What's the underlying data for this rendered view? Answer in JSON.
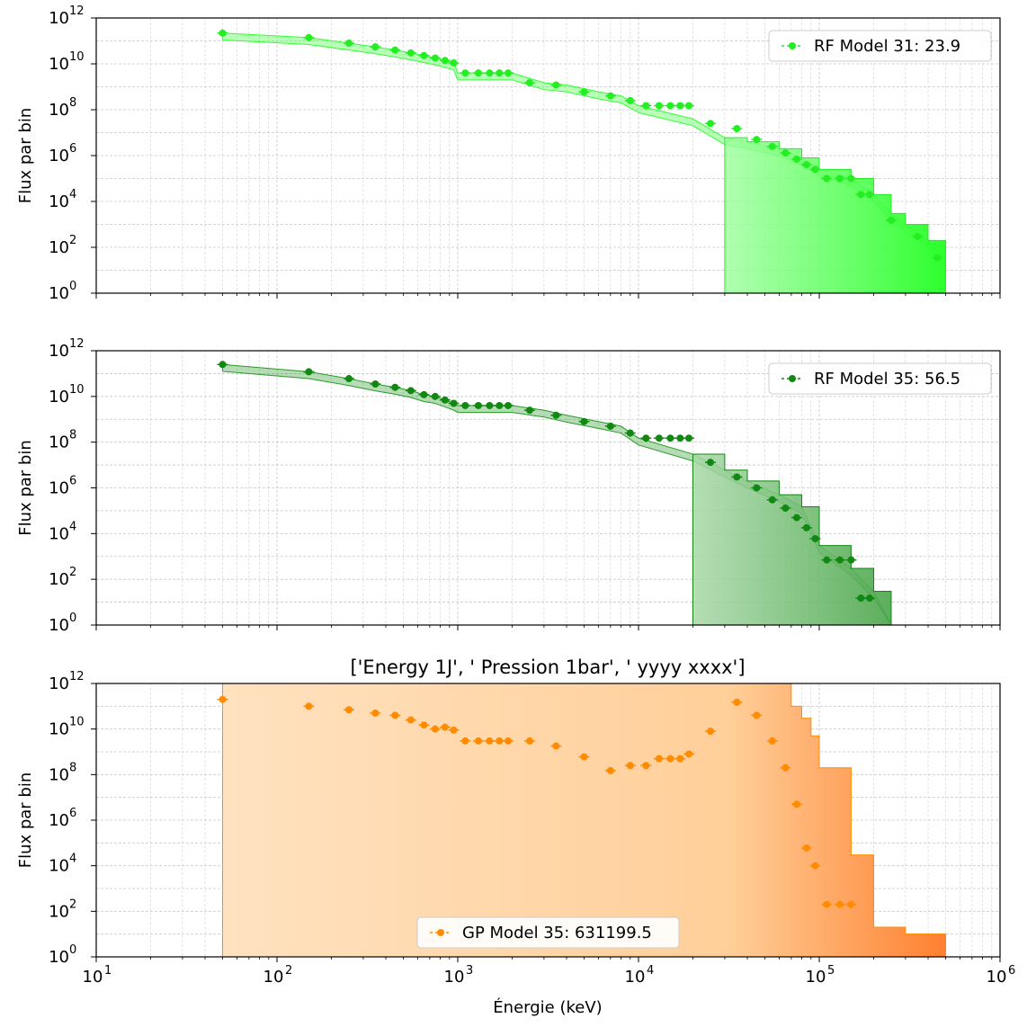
{
  "figure": {
    "xlabel": "Énergie (keV)",
    "xticks": [
      "10",
      "10",
      "10",
      "10",
      "10",
      "10"
    ],
    "xtick_exponents": [
      "1",
      "2",
      "3",
      "4",
      "5",
      "6"
    ],
    "yticks": [
      "10",
      "10",
      "10",
      "10",
      "10",
      "10",
      "10"
    ],
    "ytick_exponents": [
      "0",
      "2",
      "4",
      "6",
      "8",
      "10",
      "12"
    ]
  },
  "chart_data": [
    {
      "type": "scatter",
      "title": "",
      "xlabel": "",
      "ylabel": "Flux par bin",
      "xscale": "log",
      "yscale": "log",
      "xlim": [
        10,
        1000000
      ],
      "ylim": [
        1,
        1000000000000.0
      ],
      "grid": true,
      "legend": {
        "label": "RF Model 31: 23.9",
        "placement": "top-right"
      },
      "color": "#22ee22",
      "fill_color": "#33ff33",
      "x": [
        50,
        150,
        250,
        350,
        450,
        550,
        650,
        750,
        850,
        950,
        1100,
        1300,
        1500,
        1700,
        1900,
        2500,
        3500,
        5000,
        7000,
        9000,
        11000,
        13000,
        15000,
        17000,
        19000,
        25000,
        35000,
        45000,
        55000,
        65000,
        75000,
        85000,
        95000,
        110000,
        130000,
        150000,
        170000,
        190000,
        250000,
        350000,
        450000
      ],
      "y": [
        220000000000.0,
        140000000000.0,
        80000000000.0,
        55000000000.0,
        40000000000.0,
        30000000000.0,
        23000000000.0,
        18000000000.0,
        14000000000.0,
        11000000000.0,
        4000000000.0,
        4000000000.0,
        4000000000.0,
        4000000000.0,
        4000000000.0,
        1500000000.0,
        1200000000.0,
        600000000.0,
        400000000.0,
        250000000.0,
        150000000.0,
        150000000.0,
        150000000.0,
        150000000.0,
        150000000.0,
        25000000.0,
        15000000.0,
        5000000.0,
        2500000.0,
        1300000.0,
        700000.0,
        400000.0,
        250000.0,
        100000.0,
        100000.0,
        100000.0,
        20000.0,
        20000.0,
        1500.0,
        300.0,
        35.0
      ],
      "shade_band": [
        [
          50,
          220000000000.0
        ],
        [
          150,
          140000000000.0
        ],
        [
          250,
          80000000000.0
        ],
        [
          350,
          55000000000.0
        ],
        [
          450,
          40000000000.0
        ],
        [
          550,
          30000000000.0
        ],
        [
          650,
          23000000000.0
        ],
        [
          750,
          18000000000.0
        ],
        [
          850,
          14000000000.0
        ],
        [
          950,
          11000000000.0
        ],
        [
          1000,
          4000000000.0
        ],
        [
          2000,
          4000000000.0
        ],
        [
          3000,
          1500000000.0
        ],
        [
          4000,
          1200000000.0
        ],
        [
          6000,
          600000000.0
        ],
        [
          8000,
          400000000.0
        ],
        [
          10000,
          150000000.0
        ],
        [
          20000,
          40000000.0
        ],
        [
          30000,
          6000000.0
        ],
        [
          40000,
          4000000.0
        ],
        [
          60000,
          2000000.0
        ],
        [
          80000,
          800000.0
        ],
        [
          100000,
          250000.0
        ],
        [
          150000,
          100000.0
        ],
        [
          200000,
          20000.0
        ],
        [
          250000,
          3000.0
        ],
        [
          300000,
          1000.0
        ],
        [
          400000,
          200.0
        ],
        [
          500000,
          35.0
        ]
      ],
      "fill_region": [
        [
          30000,
          6000000.0
        ],
        [
          40000,
          4000000.0
        ],
        [
          60000,
          2000000.0
        ],
        [
          80000,
          800000.0
        ],
        [
          100000,
          250000.0
        ],
        [
          150000,
          100000.0
        ],
        [
          200000,
          20000.0
        ],
        [
          250000,
          3000.0
        ],
        [
          300000,
          1000.0
        ],
        [
          400000,
          200.0
        ],
        [
          500000,
          35.0
        ]
      ]
    },
    {
      "type": "scatter",
      "title": "",
      "xlabel": "",
      "ylabel": "Flux par bin",
      "xscale": "log",
      "yscale": "log",
      "xlim": [
        10,
        1000000
      ],
      "ylim": [
        1,
        1000000000000.0
      ],
      "grid": true,
      "legend": {
        "label": "RF Model 35: 56.5",
        "placement": "top-right"
      },
      "color": "#118811",
      "fill_color": "#2a9a2a",
      "x": [
        50,
        150,
        250,
        350,
        450,
        550,
        650,
        750,
        850,
        950,
        1100,
        1300,
        1500,
        1700,
        1900,
        2500,
        3500,
        5000,
        7000,
        9000,
        11000,
        13000,
        15000,
        17000,
        19000,
        25000,
        35000,
        45000,
        55000,
        65000,
        75000,
        85000,
        95000,
        110000,
        130000,
        150000,
        170000,
        190000
      ],
      "y": [
        250000000000.0,
        120000000000.0,
        60000000000.0,
        35000000000.0,
        25000000000.0,
        18000000000.0,
        12000000000.0,
        10000000000.0,
        7000000000.0,
        5000000000.0,
        4000000000.0,
        4000000000.0,
        4000000000.0,
        4000000000.0,
        4000000000.0,
        2500000000.0,
        1500000000.0,
        800000000.0,
        500000000.0,
        250000000.0,
        150000000.0,
        150000000.0,
        150000000.0,
        150000000.0,
        150000000.0,
        13000000.0,
        3000000.0,
        1000000.0,
        300000.0,
        130000.0,
        50000.0,
        18000.0,
        6000.0,
        700.0,
        700.0,
        700.0,
        15.0,
        15.0
      ],
      "shade_band": [
        [
          50,
          250000000000.0
        ],
        [
          150,
          120000000000.0
        ],
        [
          250,
          60000000000.0
        ],
        [
          350,
          35000000000.0
        ],
        [
          450,
          25000000000.0
        ],
        [
          550,
          18000000000.0
        ],
        [
          650,
          12000000000.0
        ],
        [
          750,
          10000000000.0
        ],
        [
          850,
          7000000000.0
        ],
        [
          950,
          5000000000.0
        ],
        [
          1000,
          4000000000.0
        ],
        [
          2000,
          4000000000.0
        ],
        [
          3000,
          2500000000.0
        ],
        [
          4000,
          1500000000.0
        ],
        [
          6000,
          800000000.0
        ],
        [
          8000,
          500000000.0
        ],
        [
          10000,
          150000000.0
        ],
        [
          20000,
          30000000.0
        ],
        [
          30000,
          6000000.0
        ],
        [
          40000,
          2000000.0
        ],
        [
          60000,
          500000.0
        ],
        [
          80000,
          150000.0
        ],
        [
          100000,
          3000.0
        ],
        [
          150000,
          300.0
        ],
        [
          200000,
          30.0
        ],
        [
          250000,
          1
        ]
      ],
      "fill_region": [
        [
          20000,
          30000000.0
        ],
        [
          30000,
          6000000.0
        ],
        [
          40000,
          2000000.0
        ],
        [
          60000,
          500000.0
        ],
        [
          80000,
          150000.0
        ],
        [
          100000,
          3000.0
        ],
        [
          150000,
          300.0
        ],
        [
          200000,
          30.0
        ],
        [
          250000,
          1
        ]
      ]
    },
    {
      "type": "scatter",
      "title": "['Energy 1J', ' Pression 1bar', ' yyyy xxxx']",
      "xlabel": "Énergie (keV)",
      "ylabel": "Flux par bin",
      "xscale": "log",
      "yscale": "log",
      "xlim": [
        10,
        1000000
      ],
      "ylim": [
        1,
        1000000000000.0
      ],
      "grid": true,
      "legend": {
        "label": "GP Model 35: 631199.5",
        "placement": "bottom-center"
      },
      "color": "#ff8c00",
      "fill_color": "#ffb066",
      "x": [
        50,
        150,
        250,
        350,
        450,
        550,
        650,
        750,
        850,
        950,
        1100,
        1300,
        1500,
        1700,
        1900,
        2500,
        3500,
        5000,
        7000,
        9000,
        11000,
        13000,
        15000,
        17000,
        19000,
        25000,
        35000,
        45000,
        55000,
        65000,
        75000,
        85000,
        95000,
        110000,
        130000,
        150000
      ],
      "y": [
        200000000000.0,
        100000000000.0,
        70000000000.0,
        50000000000.0,
        40000000000.0,
        25000000000.0,
        15000000000.0,
        10000000000.0,
        12000000000.0,
        9000000000.0,
        3000000000.0,
        3000000000.0,
        3000000000.0,
        3000000000.0,
        3000000000.0,
        3000000000.0,
        1800000000.0,
        600000000.0,
        150000000.0,
        250000000.0,
        250000000.0,
        500000000.0,
        500000000.0,
        500000000.0,
        800000000.0,
        8000000000.0,
        150000000000.0,
        40000000000.0,
        3000000000.0,
        200000000.0,
        5000000.0,
        60000.0,
        10000.0,
        200.0,
        200.0,
        200.0
      ],
      "shade_band": [
        [
          50,
          1000000000000.0
        ],
        [
          60000,
          1000000000000.0
        ],
        [
          65000,
          1000000000000.0
        ],
        [
          70000,
          100000000000.0
        ],
        [
          80000,
          30000000000.0
        ],
        [
          90000,
          5000000000.0
        ],
        [
          100000,
          200000000.0
        ],
        [
          150000,
          30000.0
        ],
        [
          200000,
          20.0
        ],
        [
          300000,
          10.0
        ],
        [
          500000,
          10.0
        ]
      ],
      "fill_region": [
        [
          50,
          1000000000000.0
        ],
        [
          65000,
          1000000000000.0
        ],
        [
          70000,
          100000000000.0
        ],
        [
          80000,
          30000000000.0
        ],
        [
          90000,
          5000000000.0
        ],
        [
          100000,
          200000000.0
        ],
        [
          150000,
          30000.0
        ],
        [
          200000,
          20.0
        ],
        [
          300000,
          10.0
        ],
        [
          500000,
          10.0
        ]
      ]
    }
  ]
}
